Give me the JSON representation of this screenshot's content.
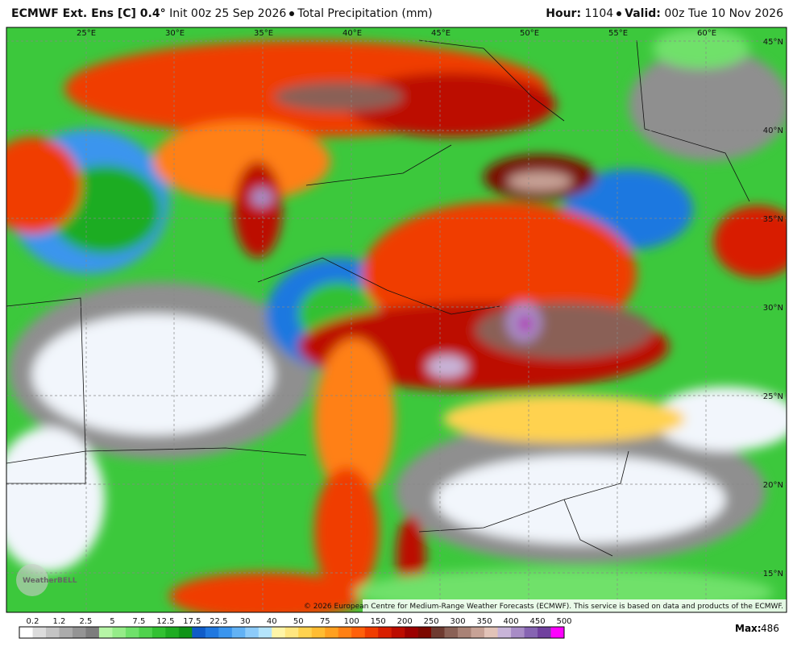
{
  "header": {
    "model": "ECMWF Ext.  Ens [C] 0.4°",
    "init": "Init 00z 25 Sep 2026",
    "field": "Total Precipitation (mm)",
    "hour_label": "Hour:",
    "hour": "1104",
    "valid_label": "Valid:",
    "valid": "00z Tue 10 Nov 2026"
  },
  "map": {
    "lon_labels": [
      "25°E",
      "30°E",
      "35°E",
      "40°E",
      "45°E",
      "50°E",
      "55°E",
      "60°E"
    ],
    "lat_labels": [
      "45°N",
      "40°N",
      "35°N",
      "30°N",
      "25°N",
      "20°N",
      "15°N"
    ],
    "copyright": "© 2026 European Centre for Medium-Range Weather Forecasts (ECMWF). This service is based on data and products of the ECMWF.",
    "logo": "WeatherBELL"
  },
  "legend": {
    "labels": [
      "0.2",
      "1.2",
      "2.5",
      "5",
      "7.5",
      "12.5",
      "17.5",
      "22.5",
      "30",
      "40",
      "50",
      "75",
      "100",
      "150",
      "200",
      "250",
      "300",
      "350",
      "400",
      "450",
      "500"
    ],
    "colors": [
      "#ffffff",
      "#dcdcdc",
      "#c4c4c4",
      "#ababab",
      "#949494",
      "#7d7d7d",
      "#b6f5a6",
      "#95ec88",
      "#6fe16a",
      "#4fd24d",
      "#32c132",
      "#1eac22",
      "#109418",
      "#0f5cc8",
      "#1f78e0",
      "#3a95ee",
      "#62b2f5",
      "#8ccbfa",
      "#b4e4fb",
      "#fff5a8",
      "#ffe680",
      "#ffd24f",
      "#ffbc32",
      "#ffa020",
      "#ff8014",
      "#ff600a",
      "#f03c00",
      "#d81e00",
      "#bc0c00",
      "#9c0000",
      "#7c0800",
      "#6e3a30",
      "#8a6156",
      "#a98276",
      "#c7a296",
      "#e2c3b8",
      "#c8b4d8",
      "#a88cc6",
      "#8664b2",
      "#70409e",
      "#ff00ff"
    ],
    "max_label": "Max:",
    "max": "486"
  }
}
